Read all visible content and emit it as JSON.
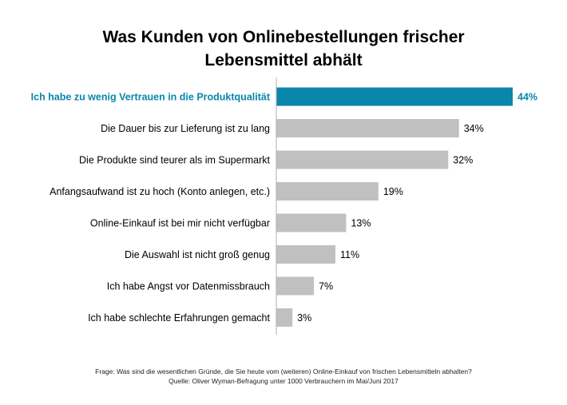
{
  "chart_data": {
    "type": "bar",
    "orientation": "horizontal",
    "title_lines": [
      "Was Kunden von Onlinebestellungen frischer",
      "Lebensmittel abhält"
    ],
    "categories": [
      "Ich habe zu wenig Vertrauen in die Produktqualität",
      "Die Dauer bis zur Lieferung ist zu lang",
      "Die Produkte sind teurer als im Supermarkt",
      "Anfangsaufwand ist zu hoch (Konto anlegen, etc.)",
      "Online-Einkauf ist bei mir nicht verfügbar",
      "Die Auswahl ist nicht groß genug",
      "Ich habe Angst vor Datenmissbrauch",
      "Ich habe schlechte Erfahrungen gemacht"
    ],
    "values": [
      44,
      34,
      32,
      19,
      13,
      11,
      7,
      3
    ],
    "value_labels": [
      "44%",
      "34%",
      "32%",
      "19%",
      "13%",
      "11%",
      "7%",
      "3%"
    ],
    "highlight_index": 0,
    "xlim": [
      0,
      44
    ],
    "grid": false,
    "xlabel": "",
    "ylabel": ""
  },
  "colors": {
    "highlight": "#0a86ab",
    "bar": "#c0c0c0",
    "axis": "#b0b0b0",
    "text": "#000000"
  },
  "footer": {
    "question": "Frage: Was sind die wesentlichen Gründe, die Sie heute vom (weiteren) Online-Einkauf von frischen Lebensmitteln abhalten?",
    "source": "Quelle: Oliver Wyman-Befragung unter 1000 Verbrauchern im Mai/Juni 2017"
  }
}
